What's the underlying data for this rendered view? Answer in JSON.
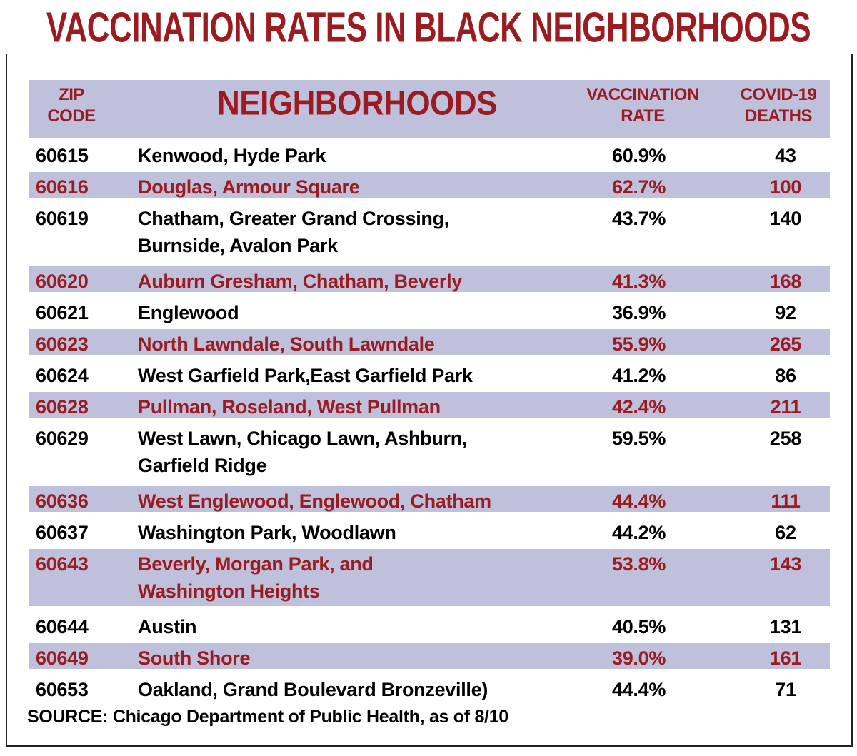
{
  "title": "VACCINATION RATES IN BLACK NEIGHBORHOODS",
  "headers": {
    "zip": [
      "ZIP",
      "CODE"
    ],
    "neighborhoods": "NEIGHBORHOODS",
    "rate": [
      "VACCINATION",
      "RATE"
    ],
    "deaths": [
      "COVID-19",
      "DEATHS"
    ]
  },
  "rows": [
    {
      "zip": "60615",
      "neighborhoods": [
        "Kenwood, Hyde Park"
      ],
      "rate": "60.9%",
      "deaths": "43"
    },
    {
      "zip": "60616",
      "neighborhoods": [
        "Douglas, Armour Square"
      ],
      "rate": "62.7%",
      "deaths": "100"
    },
    {
      "zip": "60619",
      "neighborhoods": [
        "Chatham, Greater Grand Crossing,",
        "Burnside, Avalon Park"
      ],
      "rate": "43.7%",
      "deaths": "140"
    },
    {
      "zip": "60620",
      "neighborhoods": [
        "Auburn Gresham, Chatham, Beverly"
      ],
      "rate": "41.3%",
      "deaths": "168"
    },
    {
      "zip": "60621",
      "neighborhoods": [
        "Englewood"
      ],
      "rate": "36.9%",
      "deaths": "92"
    },
    {
      "zip": "60623",
      "neighborhoods": [
        "North Lawndale, South Lawndale"
      ],
      "rate": "55.9%",
      "deaths": "265"
    },
    {
      "zip": "60624",
      "neighborhoods": [
        "West Garfield Park,East Garfield Park"
      ],
      "rate": "41.2%",
      "deaths": "86"
    },
    {
      "zip": "60628",
      "neighborhoods": [
        "Pullman, Roseland, West Pullman"
      ],
      "rate": "42.4%",
      "deaths": "211"
    },
    {
      "zip": "60629",
      "neighborhoods": [
        "West Lawn, Chicago Lawn, Ashburn,",
        "Garfield Ridge"
      ],
      "rate": "59.5%",
      "deaths": "258"
    },
    {
      "zip": "60636",
      "neighborhoods": [
        "West Englewood, Englewood, Chatham"
      ],
      "rate": "44.4%",
      "deaths": "111"
    },
    {
      "zip": "60637",
      "neighborhoods": [
        "Washington Park, Woodlawn"
      ],
      "rate": "44.2%",
      "deaths": "62"
    },
    {
      "zip": "60643",
      "neighborhoods": [
        "Beverly, Morgan Park, and",
        "Washington Heights"
      ],
      "rate": "53.8%",
      "deaths": "143"
    },
    {
      "zip": "60644",
      "neighborhoods": [
        "Austin"
      ],
      "rate": "40.5%",
      "deaths": "131"
    },
    {
      "zip": "60649",
      "neighborhoods": [
        "South Shore"
      ],
      "rate": "39.0%",
      "deaths": "161"
    },
    {
      "zip": "60653",
      "neighborhoods": [
        "Oakland, Grand Boulevard Bronzeville)"
      ],
      "rate": "44.4%",
      "deaths": "71"
    }
  ],
  "source": "SOURCE: Chicago Department of Public Health, as of 8/10",
  "colors": {
    "accent": "#9b1c20",
    "band": "#bfc0dc"
  }
}
